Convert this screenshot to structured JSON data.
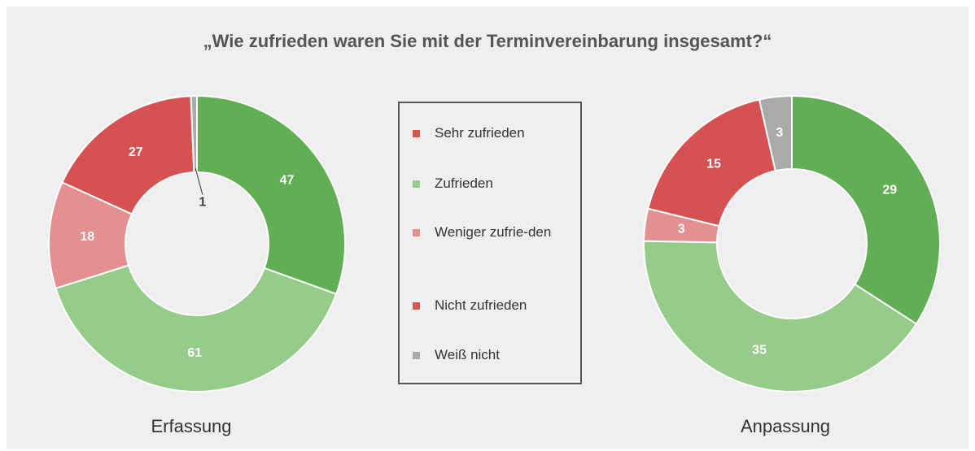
{
  "title": "„Wie zufrieden waren Sie mit der Terminvereinbarung insgesamt?“",
  "legend_colors": [
    "#d9534f",
    "#96cc8a",
    "#e59090",
    "#d9534f",
    "#aaaaaa"
  ],
  "chart_data": [
    {
      "type": "pie",
      "donut": true,
      "title": "Erfassung",
      "categories": [
        "Sehr zufrieden",
        "Zufrieden",
        "Weniger zufrie-den",
        "Nicht zufrieden",
        "Weiß nicht"
      ],
      "values": [
        47,
        61,
        18,
        27,
        1
      ],
      "colors": [
        "#62ae55",
        "#96cc8a",
        "#e59090",
        "#d65252",
        "#aaaaaa"
      ]
    },
    {
      "type": "pie",
      "donut": true,
      "title": "Anpassung",
      "categories": [
        "Sehr zufrieden",
        "Zufrieden",
        "Weniger zufrie-den",
        "Nicht zufrieden",
        "Weiß nicht"
      ],
      "values": [
        29,
        35,
        3,
        15,
        3
      ],
      "colors": [
        "#62ae55",
        "#96cc8a",
        "#e59090",
        "#d65252",
        "#aaaaaa"
      ]
    }
  ]
}
